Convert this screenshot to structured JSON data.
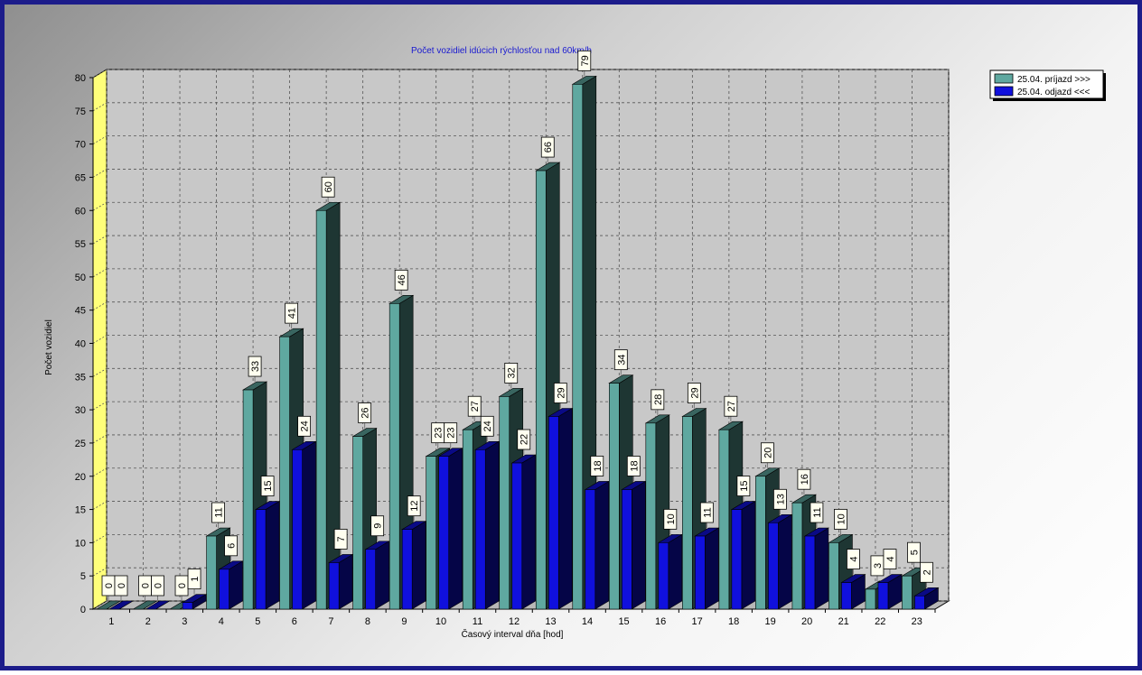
{
  "chart_data": {
    "type": "bar",
    "title": "Počet vozidiel idúcich rýchlosťou nad 60km/h",
    "xlabel": "Časový interval dňa [hod]",
    "ylabel": "Počet vozidiel",
    "ylim": [
      0,
      80
    ],
    "yticks": [
      0,
      5,
      10,
      15,
      20,
      25,
      30,
      35,
      40,
      45,
      50,
      55,
      60,
      65,
      70,
      75,
      80
    ],
    "categories": [
      "1",
      "2",
      "3",
      "4",
      "5",
      "6",
      "7",
      "8",
      "9",
      "10",
      "11",
      "12",
      "13",
      "14",
      "15",
      "16",
      "17",
      "18",
      "19",
      "20",
      "21",
      "22",
      "23"
    ],
    "grid": true,
    "legend_position": "top-right",
    "series": [
      {
        "name": "25.04.  príjazd >>>",
        "color": "#5fa8a0",
        "values": [
          0,
          0,
          0,
          11,
          33,
          41,
          60,
          26,
          46,
          23,
          27,
          32,
          66,
          79,
          34,
          28,
          29,
          27,
          20,
          16,
          10,
          3,
          5
        ]
      },
      {
        "name": "25.04.  odjazd <<<",
        "color": "#1010dd",
        "values": [
          0,
          0,
          1,
          6,
          15,
          24,
          7,
          9,
          12,
          23,
          24,
          22,
          29,
          18,
          18,
          10,
          11,
          15,
          13,
          11,
          4,
          4,
          2
        ]
      }
    ]
  }
}
